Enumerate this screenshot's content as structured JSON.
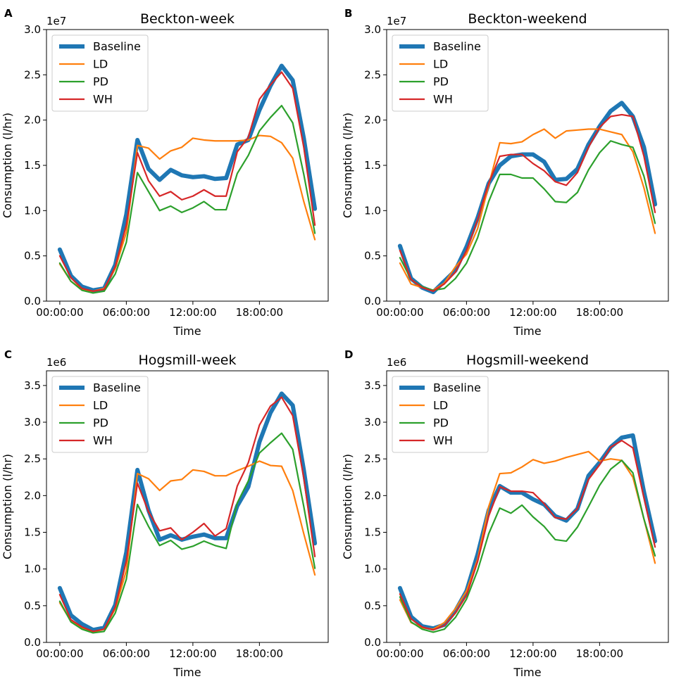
{
  "colors": {
    "Baseline": "#1f77b4",
    "LD": "#ff7f0e",
    "PD": "#2ca02c",
    "WH": "#d62728"
  },
  "chart_data": [
    {
      "panel": "A",
      "type": "line",
      "title": "Beckton-week",
      "xlabel": "Time",
      "ylabel": "Consumption (l/hr)",
      "offset_label": "1e7",
      "xlim": [
        -1.2,
        24.2
      ],
      "ylim": [
        0,
        3.0
      ],
      "xticks": [
        0,
        6,
        12,
        18
      ],
      "xtick_labels": [
        "00:00:00",
        "06:00:00",
        "12:00:00",
        "18:00:00"
      ],
      "yticks": [
        "0.0",
        "0.5",
        "1.0",
        "1.5",
        "2.0",
        "2.5",
        "3.0"
      ],
      "x": [
        0,
        1,
        2,
        3,
        4,
        5,
        6,
        7,
        8,
        9,
        10,
        11,
        12,
        13,
        14,
        15,
        16,
        17,
        18,
        19,
        20,
        21,
        22,
        23
      ],
      "legend": [
        "Baseline",
        "LD",
        "PD",
        "WH"
      ],
      "series": [
        {
          "name": "Baseline",
          "values": [
            0.57,
            0.28,
            0.16,
            0.12,
            0.14,
            0.4,
            0.96,
            1.78,
            1.46,
            1.34,
            1.45,
            1.39,
            1.37,
            1.38,
            1.35,
            1.36,
            1.73,
            1.78,
            2.11,
            2.38,
            2.6,
            2.44,
            1.8,
            1.02
          ]
        },
        {
          "name": "LD",
          "values": [
            0.41,
            0.22,
            0.13,
            0.11,
            0.14,
            0.36,
            0.76,
            1.72,
            1.69,
            1.57,
            1.66,
            1.7,
            1.8,
            1.78,
            1.77,
            1.77,
            1.77,
            1.78,
            1.83,
            1.82,
            1.75,
            1.58,
            1.1,
            0.68
          ]
        },
        {
          "name": "PD",
          "values": [
            0.42,
            0.22,
            0.12,
            0.09,
            0.11,
            0.3,
            0.65,
            1.42,
            1.21,
            1.0,
            1.05,
            0.98,
            1.03,
            1.1,
            1.01,
            1.01,
            1.41,
            1.61,
            1.88,
            2.03,
            2.16,
            1.97,
            1.4,
            0.75
          ]
        },
        {
          "name": "WH",
          "values": [
            0.5,
            0.26,
            0.14,
            0.11,
            0.13,
            0.38,
            0.84,
            1.64,
            1.33,
            1.16,
            1.21,
            1.12,
            1.16,
            1.23,
            1.16,
            1.16,
            1.65,
            1.81,
            2.23,
            2.39,
            2.53,
            2.35,
            1.7,
            0.84
          ]
        }
      ]
    },
    {
      "panel": "B",
      "type": "line",
      "title": "Beckton-weekend",
      "xlabel": "Time",
      "ylabel": "Consumption (l/hr)",
      "offset_label": "1e7",
      "xlim": [
        -1.2,
        24.2
      ],
      "ylim": [
        0,
        3.0
      ],
      "xticks": [
        0,
        6,
        12,
        18
      ],
      "xtick_labels": [
        "00:00:00",
        "06:00:00",
        "12:00:00",
        "18:00:00"
      ],
      "yticks": [
        "0.0",
        "0.5",
        "1.0",
        "1.5",
        "2.0",
        "2.5",
        "3.0"
      ],
      "x": [
        0,
        1,
        2,
        3,
        4,
        5,
        6,
        7,
        8,
        9,
        10,
        11,
        12,
        13,
        14,
        15,
        16,
        17,
        18,
        19,
        20,
        21,
        22,
        23
      ],
      "legend": [
        "Baseline",
        "LD",
        "PD",
        "WH"
      ],
      "series": [
        {
          "name": "Baseline",
          "values": [
            0.61,
            0.25,
            0.15,
            0.1,
            0.22,
            0.34,
            0.6,
            0.92,
            1.3,
            1.5,
            1.6,
            1.62,
            1.62,
            1.54,
            1.34,
            1.35,
            1.46,
            1.73,
            1.93,
            2.1,
            2.19,
            2.04,
            1.7,
            1.07
          ]
        },
        {
          "name": "LD",
          "values": [
            0.42,
            0.19,
            0.15,
            0.12,
            0.2,
            0.38,
            0.52,
            0.8,
            1.28,
            1.75,
            1.74,
            1.76,
            1.84,
            1.9,
            1.8,
            1.88,
            1.89,
            1.9,
            1.9,
            1.87,
            1.84,
            1.65,
            1.25,
            0.75
          ]
        },
        {
          "name": "PD",
          "values": [
            0.48,
            0.24,
            0.16,
            0.12,
            0.14,
            0.25,
            0.42,
            0.7,
            1.1,
            1.4,
            1.4,
            1.36,
            1.36,
            1.24,
            1.1,
            1.09,
            1.2,
            1.45,
            1.64,
            1.77,
            1.73,
            1.7,
            1.38,
            0.86
          ]
        },
        {
          "name": "WH",
          "values": [
            0.56,
            0.24,
            0.15,
            0.11,
            0.19,
            0.32,
            0.56,
            0.9,
            1.3,
            1.6,
            1.62,
            1.62,
            1.52,
            1.44,
            1.32,
            1.28,
            1.42,
            1.7,
            1.92,
            2.04,
            2.06,
            2.04,
            1.6,
            0.98
          ]
        }
      ]
    },
    {
      "panel": "C",
      "type": "line",
      "title": "Hogsmill-week",
      "xlabel": "Time",
      "ylabel": "Consumption (l/hr)",
      "offset_label": "1e6",
      "xlim": [
        -1.2,
        24.2
      ],
      "ylim": [
        0,
        3.7
      ],
      "xticks": [
        0,
        6,
        12,
        18
      ],
      "xtick_labels": [
        "00:00:00",
        "06:00:00",
        "12:00:00",
        "18:00:00"
      ],
      "yticks": [
        "0.0",
        "0.5",
        "1.0",
        "1.5",
        "2.0",
        "2.5",
        "3.0",
        "3.5"
      ],
      "x": [
        0,
        1,
        2,
        3,
        4,
        5,
        6,
        7,
        8,
        9,
        10,
        11,
        12,
        13,
        14,
        15,
        16,
        17,
        18,
        19,
        20,
        21,
        22,
        23
      ],
      "legend": [
        "Baseline",
        "LD",
        "PD",
        "WH"
      ],
      "series": [
        {
          "name": "Baseline",
          "values": [
            0.74,
            0.37,
            0.25,
            0.17,
            0.2,
            0.51,
            1.23,
            2.35,
            1.8,
            1.4,
            1.46,
            1.4,
            1.44,
            1.47,
            1.42,
            1.42,
            1.86,
            2.12,
            2.73,
            3.13,
            3.39,
            3.23,
            2.35,
            1.35
          ]
        },
        {
          "name": "LD",
          "values": [
            0.54,
            0.29,
            0.19,
            0.14,
            0.18,
            0.46,
            0.98,
            2.3,
            2.23,
            2.07,
            2.2,
            2.22,
            2.35,
            2.33,
            2.27,
            2.27,
            2.34,
            2.4,
            2.47,
            2.41,
            2.4,
            2.07,
            1.48,
            0.92
          ]
        },
        {
          "name": "PD",
          "values": [
            0.56,
            0.28,
            0.18,
            0.13,
            0.15,
            0.4,
            0.86,
            1.88,
            1.58,
            1.32,
            1.39,
            1.27,
            1.31,
            1.38,
            1.32,
            1.28,
            1.9,
            2.2,
            2.58,
            2.72,
            2.85,
            2.63,
            1.85,
            1.01
          ]
        },
        {
          "name": "WH",
          "values": [
            0.65,
            0.31,
            0.21,
            0.15,
            0.18,
            0.48,
            1.11,
            2.17,
            1.78,
            1.52,
            1.56,
            1.4,
            1.5,
            1.62,
            1.45,
            1.55,
            2.13,
            2.45,
            2.96,
            3.22,
            3.34,
            3.09,
            2.24,
            1.17
          ]
        }
      ]
    },
    {
      "panel": "D",
      "type": "line",
      "title": "Hogsmill-weekend",
      "xlabel": "Time",
      "ylabel": "Consumption (l/hr)",
      "offset_label": "1e6",
      "xlim": [
        -1.2,
        24.2
      ],
      "ylim": [
        0,
        3.7
      ],
      "xticks": [
        0,
        6,
        12,
        18
      ],
      "xtick_labels": [
        "00:00:00",
        "06:00:00",
        "12:00:00",
        "18:00:00"
      ],
      "yticks": [
        "0.0",
        "0.5",
        "1.0",
        "1.5",
        "2.0",
        "2.5",
        "3.0",
        "3.5"
      ],
      "x": [
        0,
        1,
        2,
        3,
        4,
        5,
        6,
        7,
        8,
        9,
        10,
        11,
        12,
        13,
        14,
        15,
        16,
        17,
        18,
        19,
        20,
        21,
        22,
        23
      ],
      "legend": [
        "Baseline",
        "LD",
        "PD",
        "WH"
      ],
      "series": [
        {
          "name": "Baseline",
          "values": [
            0.74,
            0.35,
            0.22,
            0.19,
            0.24,
            0.43,
            0.7,
            1.2,
            1.8,
            2.13,
            2.04,
            2.04,
            1.95,
            1.88,
            1.72,
            1.66,
            1.82,
            2.27,
            2.45,
            2.66,
            2.79,
            2.82,
            2.05,
            1.38
          ]
        },
        {
          "name": "LD",
          "values": [
            0.58,
            0.27,
            0.2,
            0.18,
            0.27,
            0.46,
            0.7,
            1.13,
            1.85,
            2.3,
            2.31,
            2.39,
            2.49,
            2.44,
            2.47,
            2.52,
            2.56,
            2.6,
            2.47,
            2.5,
            2.48,
            2.25,
            1.68,
            1.08
          ]
        },
        {
          "name": "PD",
          "values": [
            0.62,
            0.28,
            0.18,
            0.14,
            0.18,
            0.34,
            0.59,
            0.98,
            1.48,
            1.83,
            1.76,
            1.87,
            1.71,
            1.58,
            1.4,
            1.38,
            1.57,
            1.85,
            2.14,
            2.36,
            2.48,
            2.31,
            1.68,
            1.18
          ]
        },
        {
          "name": "WH",
          "values": [
            0.66,
            0.32,
            0.21,
            0.17,
            0.23,
            0.4,
            0.64,
            1.1,
            1.72,
            2.12,
            2.06,
            2.06,
            2.04,
            1.89,
            1.7,
            1.68,
            1.82,
            2.22,
            2.42,
            2.66,
            2.75,
            2.65,
            1.97,
            1.3
          ]
        }
      ]
    }
  ]
}
